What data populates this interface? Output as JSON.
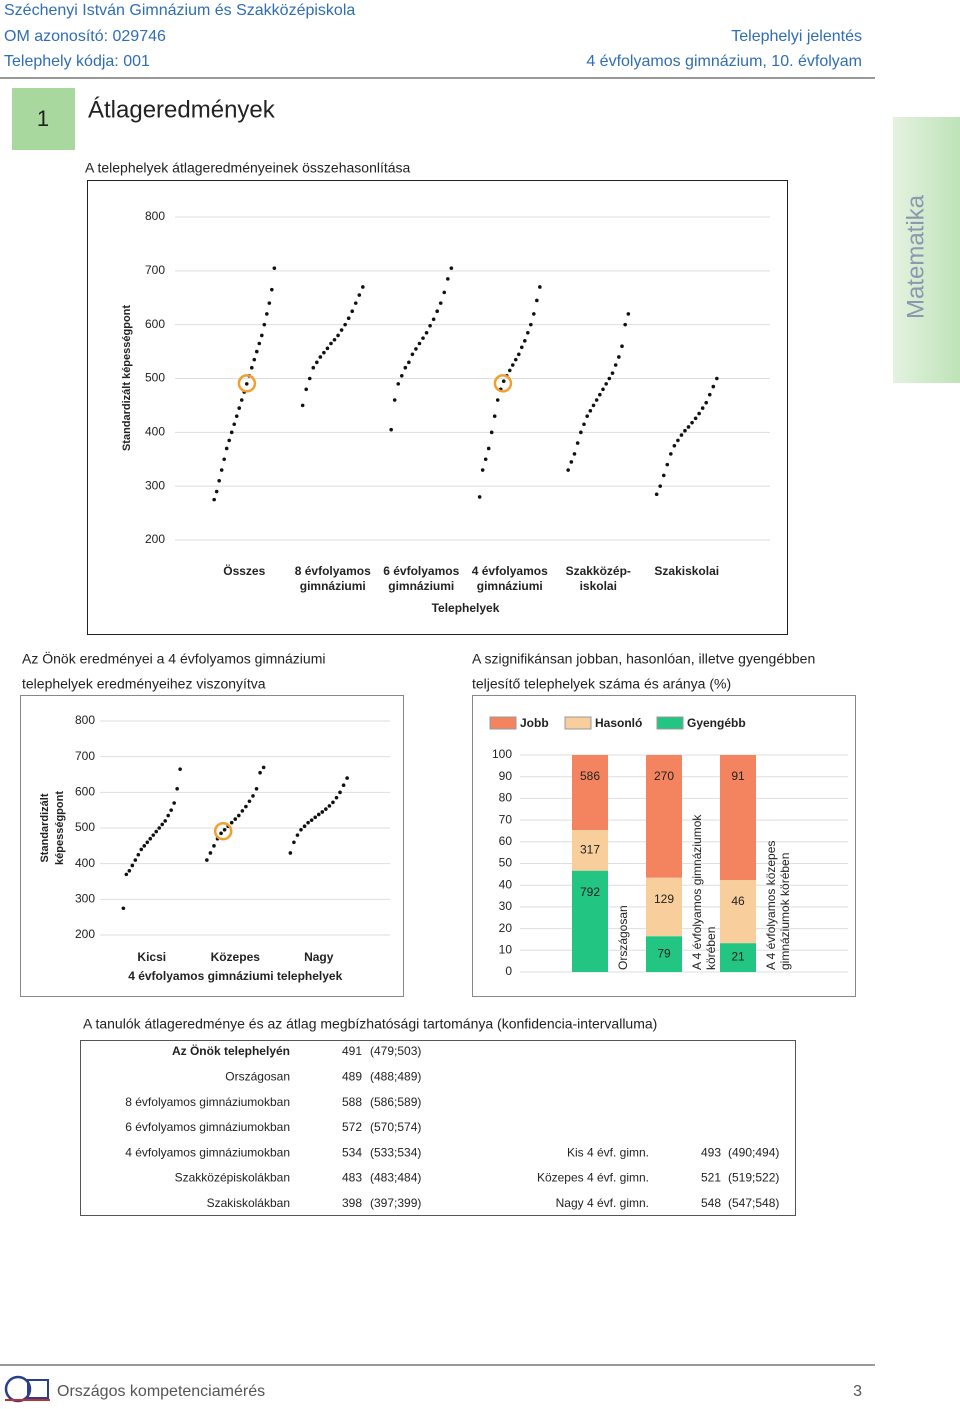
{
  "header": {
    "school": "Széchenyi István Gimnázium és Szakközépiskola",
    "om": "OM azonosító: 029746",
    "site_code": "Telephely kódja: 001",
    "report": "Telephelyi jelentés",
    "grade": "4 évfolyamos gimnázium, 10. évfolyam"
  },
  "section": {
    "number": "1",
    "title": "Átlageredmények",
    "tab": "Matematika",
    "subtitle": "A telephelyek átlageredményeinek összehasonlítása"
  },
  "captions": {
    "left": [
      "Az Önök eredményei a 4 évfolyamos gimnáziumi",
      "telephelyek eredményeihez viszonyítva"
    ],
    "right": [
      "A szignifikánsan jobban, hasonlóan, illetve gyengébben",
      "teljesítő telephelyek száma és aránya (%)"
    ]
  },
  "chart_data": [
    {
      "type": "strip",
      "y_label": [
        "Standardizált képességpont"
      ],
      "x_label": "Telephelyek",
      "ylim": [
        200,
        800
      ],
      "yticks": [
        200,
        300,
        400,
        500,
        600,
        700,
        800
      ],
      "grid": true,
      "color": "#111111",
      "highlight_color": "#f0a030",
      "categories": [
        [
          "Összes"
        ],
        [
          "8 évfolyamos",
          "gimnáziumi"
        ],
        [
          "6 évfolyamos",
          "gimnáziumi"
        ],
        [
          "4 évfolyamos",
          "gimnáziumi"
        ],
        [
          "Szakközép-",
          "iskolai"
        ],
        [
          "Szakiskolai"
        ]
      ],
      "series": [
        {
          "values": [
            275,
            290,
            310,
            330,
            350,
            370,
            385,
            400,
            415,
            430,
            445,
            460,
            475,
            490,
            505,
            520,
            535,
            550,
            565,
            580,
            600,
            620,
            640,
            665,
            705
          ],
          "highlight": 491
        },
        {
          "values": [
            450,
            480,
            500,
            520,
            530,
            540,
            548,
            556,
            565,
            572,
            580,
            590,
            600,
            612,
            625,
            640,
            655,
            670
          ]
        },
        {
          "values": [
            405,
            460,
            490,
            505,
            520,
            530,
            545,
            555,
            565,
            575,
            585,
            598,
            610,
            625,
            640,
            660,
            685,
            705
          ]
        },
        {
          "values": [
            280,
            330,
            350,
            370,
            400,
            430,
            460,
            480,
            495,
            505,
            515,
            525,
            535,
            545,
            558,
            570,
            585,
            600,
            620,
            645,
            670
          ],
          "highlight": 491
        },
        {
          "values": [
            330,
            345,
            360,
            380,
            400,
            415,
            430,
            440,
            450,
            460,
            470,
            480,
            490,
            500,
            510,
            525,
            540,
            560,
            600,
            620
          ]
        },
        {
          "values": [
            285,
            300,
            320,
            340,
            360,
            375,
            385,
            395,
            403,
            410,
            418,
            426,
            435,
            445,
            455,
            470,
            485,
            500
          ]
        }
      ]
    },
    {
      "type": "strip",
      "y_label": [
        "Standardizált",
        "képességpont"
      ],
      "x_label": "4 évfolyamos gimnáziumi telephelyek",
      "ylim": [
        200,
        800
      ],
      "yticks": [
        200,
        300,
        400,
        500,
        600,
        700,
        800
      ],
      "grid": true,
      "color": "#111111",
      "highlight_color": "#f0a030",
      "categories": [
        [
          "Kicsi"
        ],
        [
          "Közepes"
        ],
        [
          "Nagy"
        ]
      ],
      "series": [
        {
          "values": [
            275,
            370,
            380,
            395,
            410,
            425,
            440,
            450,
            460,
            470,
            480,
            490,
            500,
            510,
            520,
            535,
            550,
            570,
            610,
            665
          ]
        },
        {
          "values": [
            410,
            430,
            450,
            470,
            485,
            495,
            505,
            515,
            525,
            535,
            548,
            560,
            575,
            590,
            610,
            655,
            670
          ],
          "highlight": 491
        },
        {
          "values": [
            430,
            460,
            480,
            495,
            505,
            515,
            522,
            530,
            538,
            545,
            553,
            562,
            572,
            585,
            600,
            620,
            640
          ]
        }
      ]
    },
    {
      "type": "stacked_bar",
      "ylim": [
        0,
        100
      ],
      "yticks": [
        0,
        10,
        20,
        30,
        40,
        50,
        60,
        70,
        80,
        90,
        100
      ],
      "grid": true,
      "categories": [
        [
          "Országosan"
        ],
        [
          "A 4 évfolyamos gimnáziumok",
          "körében"
        ],
        [
          "A 4 évfolyamos közepes",
          "gimnáziumok körében"
        ]
      ],
      "series": [
        {
          "name": "Jobb",
          "color": "#f4845f",
          "values": [
            34.6,
            56.5,
            57.6
          ],
          "value_labels": [
            "586",
            "270",
            "91"
          ]
        },
        {
          "name": "Hasonló",
          "color": "#f8cf9c",
          "values": [
            18.7,
            27.0,
            29.1
          ],
          "value_labels": [
            "317",
            "129",
            "46"
          ]
        },
        {
          "name": "Gyengébb",
          "color": "#22c582",
          "values": [
            46.7,
            16.5,
            13.3
          ],
          "value_labels": [
            "792",
            "79",
            "21"
          ]
        }
      ]
    }
  ],
  "table": {
    "title": "A tanulók átlageredménye és az átlag megbízhatósági tartománya (konfidencia-intervalluma)",
    "rows": [
      [
        "Az Önök telephelyén",
        491,
        "(479;503)"
      ],
      [
        "Országosan",
        489,
        "(488;489)"
      ],
      [
        "8 évfolyamos gimnáziumokban",
        588,
        "(586;589)"
      ],
      [
        "6 évfolyamos gimnáziumokban",
        572,
        "(570;574)"
      ],
      [
        "4 évfolyamos gimnáziumokban",
        534,
        "(533;534)"
      ],
      [
        "Szakközépiskolákban",
        483,
        "(483;484)"
      ],
      [
        "Szakiskolákban",
        398,
        "(397;399)"
      ]
    ],
    "rows_right": [
      [
        "Kis 4 évf. gimn.",
        493,
        "(490;494)"
      ],
      [
        "Közepes 4 évf. gimn.",
        521,
        "(519;522)"
      ],
      [
        "Nagy 4 évf. gimn.",
        548,
        "(547;548)"
      ]
    ]
  },
  "footer": {
    "title": "Országos kompetenciamérés",
    "page": "3"
  }
}
